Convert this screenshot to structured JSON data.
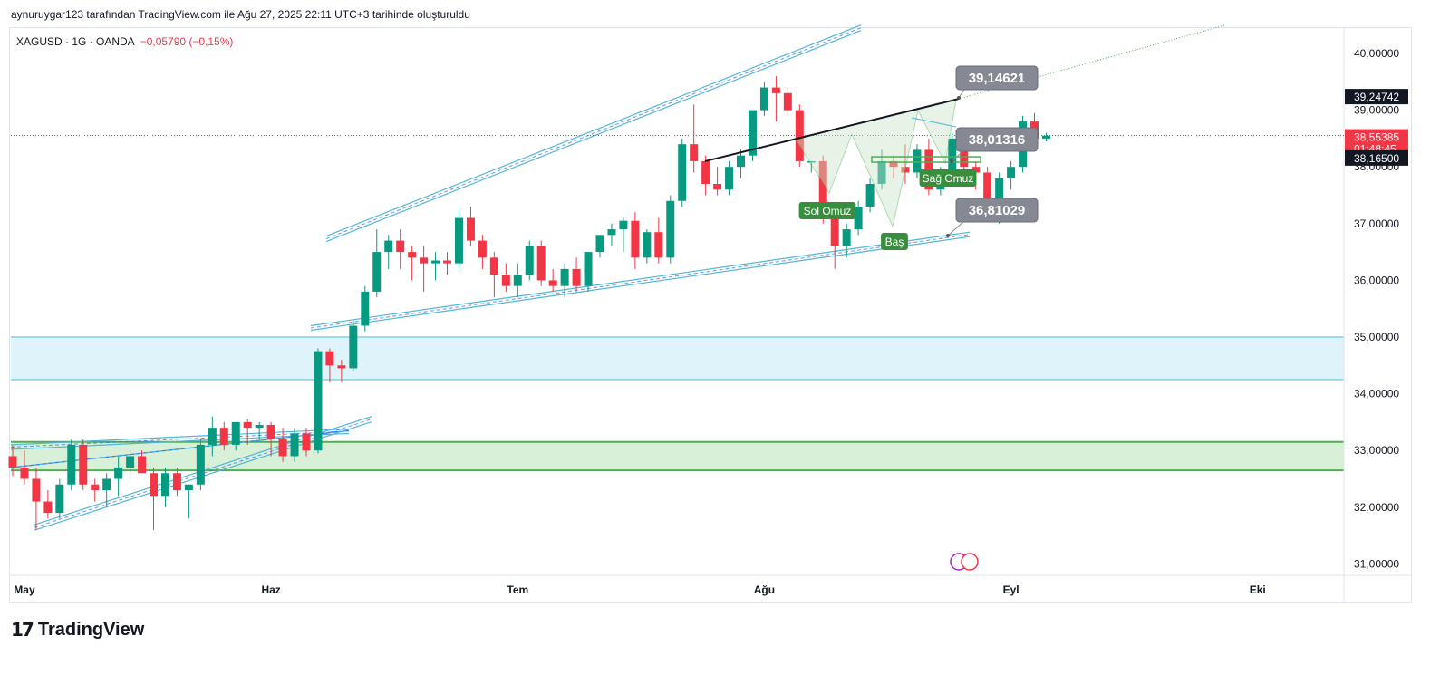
{
  "header": {
    "attribution": "aynuruygar123 tarafından TradingView.com ile Ağu 27, 2025 22:11 UTC+3 tarihinde oluşturuldu"
  },
  "legend": {
    "symbol": "XAGUSD · 1G · OANDA",
    "change": "−0,05790 (−0,15%)"
  },
  "brand": {
    "logo": "17",
    "name": "TradingView"
  },
  "colors": {
    "up": "#089981",
    "down": "#f23645",
    "channel": "#4fb6d6",
    "zone_blue": "#dff4fa",
    "zone_green": "#d8efd8",
    "green_line": "#4caf50",
    "callout": "#868993"
  },
  "chart_data": {
    "type": "candlestick",
    "symbol": "XAGUSD",
    "timeframe": "1G",
    "ylim": [
      30.8,
      40.9
    ],
    "y_ticks": [
      "40,00000",
      "39,00000",
      "38,00000",
      "37,00000",
      "36,00000",
      "35,00000",
      "34,00000",
      "33,00000",
      "32,00000",
      "31,00000"
    ],
    "y_tick_values": [
      40,
      39,
      38,
      37,
      36,
      35,
      34,
      33,
      32,
      31
    ],
    "x_ticks": [
      "May",
      "Haz",
      "Tem",
      "Ağu",
      "Eyl",
      "Eki"
    ],
    "x_tick_index": [
      1,
      22,
      43,
      64,
      85,
      106
    ],
    "candles": [
      [
        32.9,
        33.1,
        32.55,
        32.7
      ],
      [
        32.7,
        33.0,
        32.4,
        32.5
      ],
      [
        32.5,
        32.7,
        31.6,
        32.1
      ],
      [
        32.1,
        32.3,
        31.8,
        31.9
      ],
      [
        31.9,
        32.5,
        31.8,
        32.4
      ],
      [
        32.4,
        33.2,
        32.3,
        33.1
      ],
      [
        33.1,
        33.2,
        32.3,
        32.4
      ],
      [
        32.4,
        32.5,
        32.1,
        32.3
      ],
      [
        32.3,
        32.6,
        32.0,
        32.5
      ],
      [
        32.5,
        32.9,
        32.2,
        32.7
      ],
      [
        32.7,
        33.0,
        32.5,
        32.9
      ],
      [
        32.9,
        33.0,
        32.6,
        32.6
      ],
      [
        32.6,
        32.7,
        31.6,
        32.2
      ],
      [
        32.2,
        32.7,
        32.0,
        32.6
      ],
      [
        32.6,
        32.7,
        32.2,
        32.3
      ],
      [
        32.3,
        32.4,
        31.8,
        32.4
      ],
      [
        32.4,
        33.2,
        32.3,
        33.1
      ],
      [
        33.1,
        33.6,
        32.9,
        33.4
      ],
      [
        33.4,
        33.5,
        33.0,
        33.1
      ],
      [
        33.1,
        33.5,
        33.0,
        33.5
      ],
      [
        33.5,
        33.55,
        33.1,
        33.4
      ],
      [
        33.4,
        33.5,
        33.2,
        33.45
      ],
      [
        33.45,
        33.5,
        32.9,
        33.2
      ],
      [
        33.2,
        33.4,
        32.8,
        32.9
      ],
      [
        32.9,
        33.4,
        32.8,
        33.3
      ],
      [
        33.3,
        33.4,
        32.9,
        33.0
      ],
      [
        33.0,
        34.8,
        32.95,
        34.75
      ],
      [
        34.75,
        34.8,
        34.2,
        34.5
      ],
      [
        34.5,
        34.6,
        34.2,
        34.45
      ],
      [
        34.45,
        35.3,
        34.4,
        35.2
      ],
      [
        35.2,
        35.9,
        35.1,
        35.8
      ],
      [
        35.8,
        36.9,
        35.7,
        36.5
      ],
      [
        36.5,
        36.8,
        36.2,
        36.7
      ],
      [
        36.7,
        36.9,
        36.2,
        36.5
      ],
      [
        36.5,
        36.6,
        36.0,
        36.4
      ],
      [
        36.4,
        36.6,
        35.8,
        36.3
      ],
      [
        36.3,
        36.5,
        36.0,
        36.35
      ],
      [
        36.35,
        36.5,
        36.1,
        36.3
      ],
      [
        36.3,
        37.25,
        36.2,
        37.1
      ],
      [
        37.1,
        37.3,
        36.6,
        36.7
      ],
      [
        36.7,
        36.8,
        36.2,
        36.4
      ],
      [
        36.4,
        36.5,
        35.7,
        36.1
      ],
      [
        36.1,
        36.3,
        35.8,
        35.9
      ],
      [
        35.9,
        36.3,
        35.7,
        36.1
      ],
      [
        36.1,
        36.7,
        36.0,
        36.6
      ],
      [
        36.6,
        36.7,
        35.9,
        36.0
      ],
      [
        36.0,
        36.2,
        35.8,
        35.9
      ],
      [
        35.9,
        36.3,
        35.7,
        36.2
      ],
      [
        36.2,
        36.4,
        35.8,
        35.9
      ],
      [
        35.9,
        36.5,
        35.8,
        36.5
      ],
      [
        36.5,
        36.8,
        36.4,
        36.8
      ],
      [
        36.8,
        37.0,
        36.6,
        36.9
      ],
      [
        36.9,
        37.1,
        36.5,
        37.05
      ],
      [
        37.05,
        37.2,
        36.2,
        36.4
      ],
      [
        36.4,
        36.9,
        36.3,
        36.85
      ],
      [
        36.85,
        37.1,
        36.3,
        36.4
      ],
      [
        36.4,
        37.5,
        36.3,
        37.4
      ],
      [
        37.4,
        38.5,
        37.3,
        38.4
      ],
      [
        38.4,
        39.1,
        37.9,
        38.1
      ],
      [
        38.1,
        38.2,
        37.5,
        37.7
      ],
      [
        37.7,
        38.0,
        37.5,
        37.6
      ],
      [
        37.6,
        38.1,
        37.5,
        38.0
      ],
      [
        38.0,
        38.3,
        37.8,
        38.2
      ],
      [
        38.2,
        39.0,
        38.1,
        39.0
      ],
      [
        39.0,
        39.5,
        38.9,
        39.4
      ],
      [
        39.4,
        39.6,
        38.8,
        39.3
      ],
      [
        39.3,
        39.4,
        38.9,
        39.0
      ],
      [
        39.0,
        39.1,
        38.0,
        38.1
      ],
      [
        38.1,
        38.1,
        37.9,
        38.1
      ],
      [
        38.1,
        38.2,
        37.0,
        37.1
      ],
      [
        37.1,
        37.3,
        36.2,
        36.6
      ],
      [
        36.6,
        37.0,
        36.4,
        36.9
      ],
      [
        36.9,
        37.4,
        36.8,
        37.3
      ],
      [
        37.3,
        37.8,
        37.2,
        37.7
      ],
      [
        37.7,
        38.3,
        37.6,
        38.1
      ],
      [
        38.1,
        38.2,
        37.8,
        38.0
      ],
      [
        38.0,
        38.4,
        37.7,
        37.9
      ],
      [
        37.9,
        38.4,
        37.8,
        38.3
      ],
      [
        38.3,
        38.5,
        37.5,
        37.6
      ],
      [
        37.6,
        38.0,
        37.5,
        37.95
      ],
      [
        37.95,
        38.6,
        37.9,
        38.5
      ],
      [
        38.5,
        38.7,
        37.9,
        38.0
      ],
      [
        38.0,
        38.1,
        37.6,
        37.9
      ],
      [
        37.9,
        38.0,
        37.1,
        37.3
      ],
      [
        37.3,
        37.9,
        37.0,
        37.8
      ],
      [
        37.8,
        38.1,
        37.6,
        38.0
      ],
      [
        38.0,
        38.9,
        37.9,
        38.8
      ],
      [
        38.8,
        38.95,
        38.4,
        38.5
      ],
      [
        38.5,
        38.6,
        38.45,
        38.55
      ]
    ],
    "horizontal_zones": [
      {
        "from": 34.25,
        "to": 35.0,
        "color": "blue"
      },
      {
        "from": 32.65,
        "to": 33.15,
        "color": "green"
      }
    ],
    "neckline": 38.13,
    "current_price": 38.55385,
    "callouts": [
      {
        "label": "39,14621",
        "value": 39.14621
      },
      {
        "label": "38,01316",
        "value": 38.01316
      },
      {
        "label": "36,81029",
        "value": 36.81029
      }
    ],
    "pattern_labels": [
      "Sol Omuz",
      "Baş",
      "Sağ Omuz"
    ],
    "price_tags": [
      {
        "label": "39,24742",
        "value": 39.24742,
        "style": "dark"
      },
      {
        "label": "38,55385",
        "sub": "01:48:45",
        "value": 38.55385,
        "style": "red"
      },
      {
        "label": "38,16500",
        "value": 38.165,
        "style": "dark"
      }
    ]
  }
}
